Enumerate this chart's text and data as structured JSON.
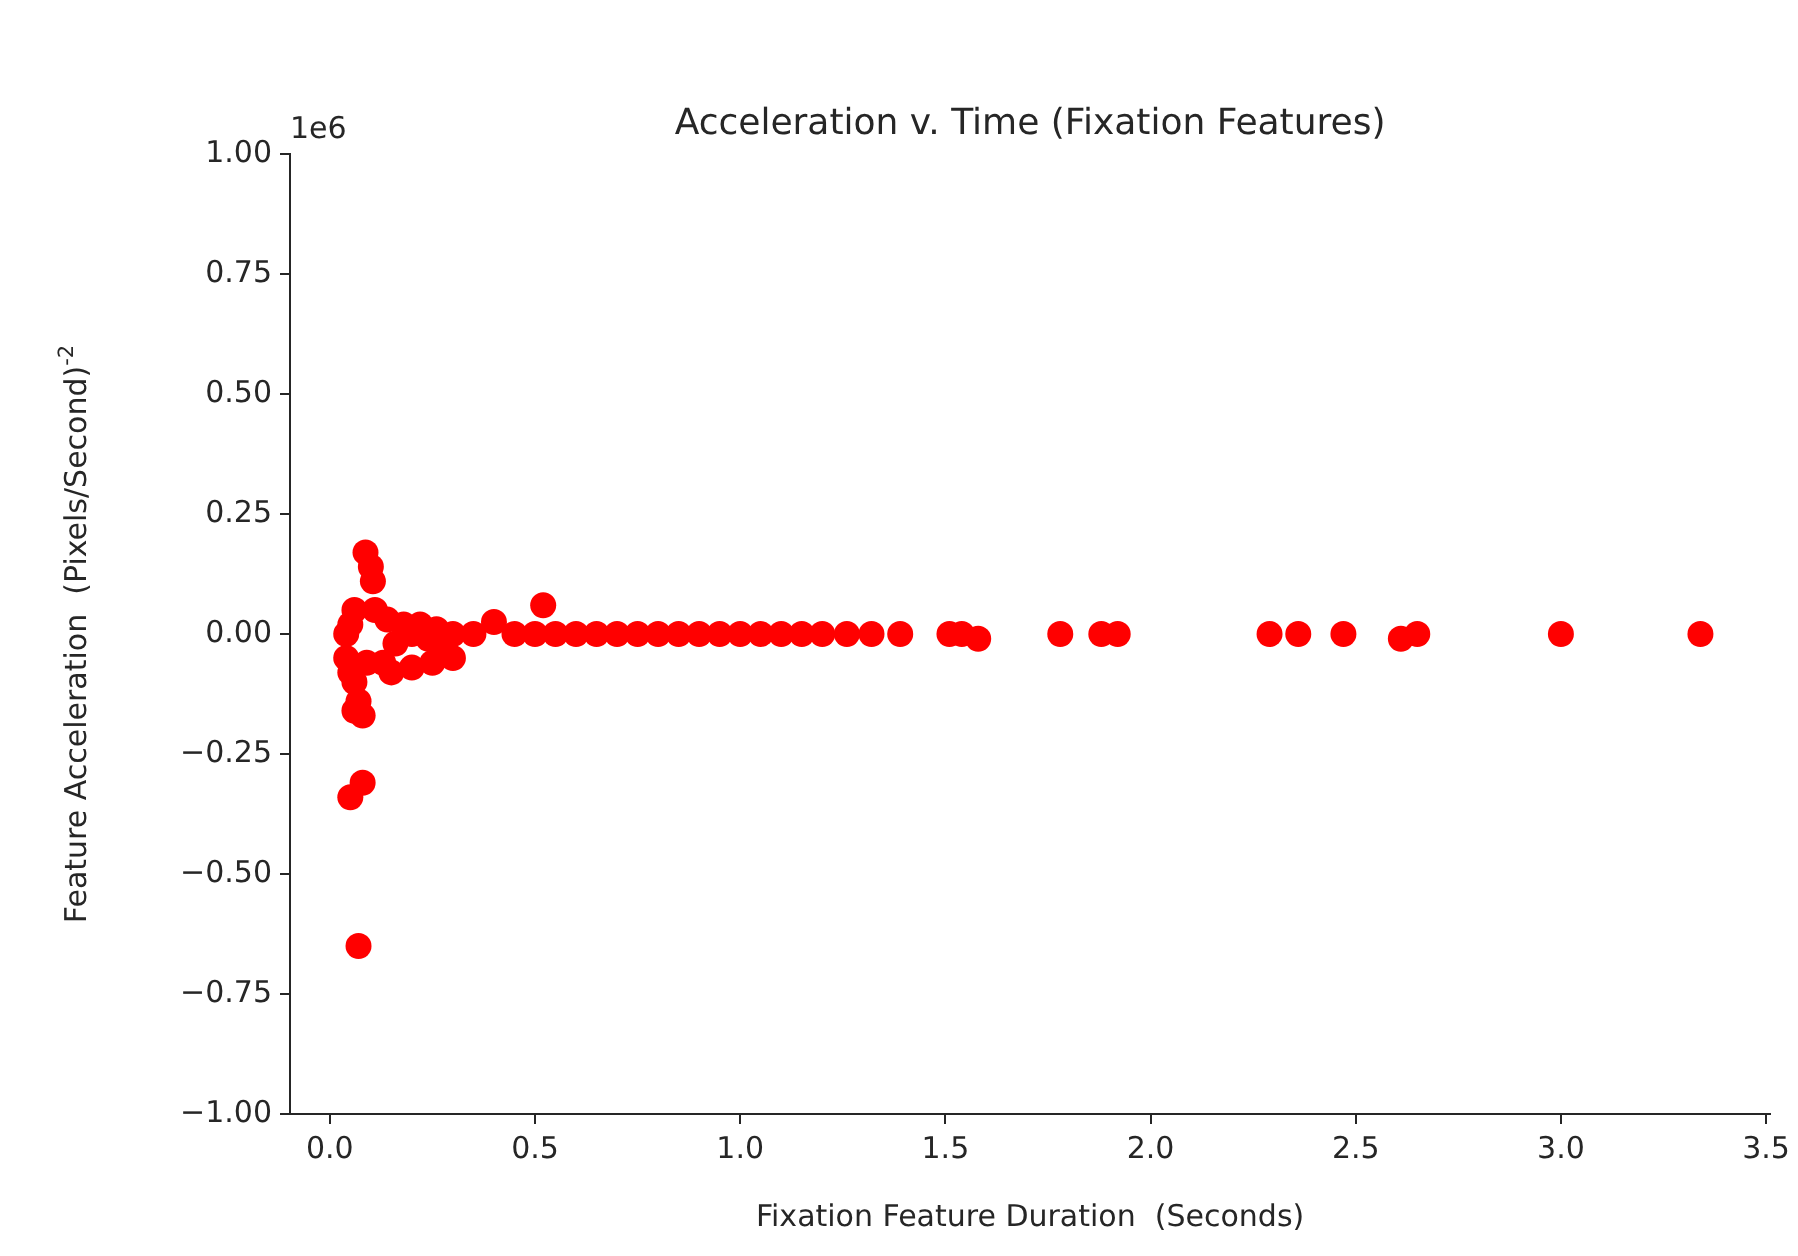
{
  "chart_data": {
    "type": "scatter",
    "title": "Acceleration v. Time (Fixation Features)",
    "xlabel": "Fixation Feature Duration  (Seconds)",
    "ylabel": "Feature Acceleration  (Pixels/Second)$^{-2}$",
    "annotations": [
      "1e6"
    ],
    "series": [
      {
        "color": "#ff0000",
        "x": [
          0.087,
          0.1,
          0.105,
          0.11,
          0.06,
          0.07,
          0.08,
          0.05,
          0.08,
          0.07,
          0.52,
          0.4,
          0.15,
          0.2,
          0.25,
          0.3,
          0.13,
          0.04,
          0.05,
          0.06,
          0.14,
          0.16,
          0.18,
          0.2,
          0.22,
          0.24,
          0.26,
          0.28,
          0.3,
          0.05,
          0.06,
          0.09,
          0.04,
          0.35,
          0.45,
          0.5,
          0.55,
          0.6,
          0.65,
          0.7,
          0.75,
          0.8,
          0.85,
          0.9,
          0.95,
          1.0,
          1.05,
          1.1,
          1.15,
          1.2,
          1.26,
          1.32,
          1.39,
          1.51,
          1.54,
          1.58,
          1.78,
          1.88,
          1.92,
          2.29,
          2.36,
          2.47,
          2.61,
          2.65,
          3.0,
          3.34
        ],
        "values": [
          0.17,
          0.14,
          0.11,
          0.05,
          -0.16,
          -0.14,
          -0.17,
          -0.34,
          -0.31,
          -0.65,
          0.06,
          0.025,
          -0.08,
          -0.07,
          -0.06,
          -0.05,
          -0.06,
          -0.05,
          0.02,
          -0.1,
          0.03,
          -0.02,
          0.02,
          0.0,
          0.02,
          -0.01,
          0.01,
          -0.02,
          0.0,
          -0.08,
          0.05,
          -0.06,
          0.0,
          0.0,
          0.0,
          0.0,
          0.0,
          0.0,
          0.0,
          0.0,
          0.0,
          0.0,
          0.0,
          0.0,
          0.0,
          0.0,
          0.0,
          0.0,
          0.0,
          0.0,
          0.0,
          0.0,
          0.0,
          0.0,
          0.0,
          -0.01,
          0.0,
          0.0,
          0.0,
          0.0,
          0.0,
          0.0,
          -0.01,
          0.0,
          0.0,
          0.0
        ]
      }
    ],
    "xlim": [
      -0.097,
      3.51
    ],
    "xticks": [
      {
        "value": 0,
        "label": "0.0"
      },
      0.5,
      {
        "value": 1,
        "label": "1.0"
      },
      1.5,
      {
        "value": 2,
        "label": "2.0"
      },
      2.5,
      {
        "value": 3,
        "label": "3.0"
      },
      3.5
    ],
    "ylim": [
      -1,
      1
    ],
    "yticks": [
      {
        "value": -1,
        "label": "−1.00"
      },
      {
        "value": -0.75,
        "label": "−0.75"
      },
      {
        "value": -0.5,
        "label": "−0.50"
      },
      {
        "value": -0.25,
        "label": "−0.25"
      },
      {
        "value": 0,
        "label": "0.00"
      },
      {
        "value": 0.25,
        "label": "0.25"
      },
      {
        "value": 0.5,
        "label": "0.50"
      },
      {
        "value": 0.75,
        "label": "0.75"
      },
      {
        "value": 1,
        "label": "1.00"
      }
    ],
    "grid": false,
    "legend": false,
    "marker": "circle"
  }
}
